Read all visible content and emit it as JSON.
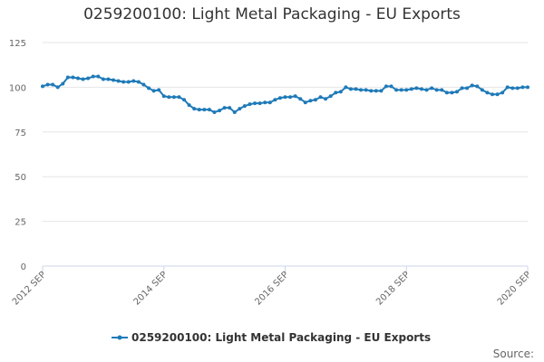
{
  "chart_data": {
    "type": "line",
    "title": "0259200100: Light Metal Packaging - EU Exports",
    "xlabel": "",
    "ylabel": "",
    "ylim": [
      0,
      125
    ],
    "yticks": [
      0,
      25,
      50,
      75,
      100,
      125
    ],
    "xtick_labels": [
      "2012 SEP",
      "2014 SEP",
      "2016 SEP",
      "2018 SEP",
      "2020 SEP"
    ],
    "xtick_months": [
      0,
      24,
      48,
      72,
      96
    ],
    "grid": true,
    "legend_position": "bottom-center",
    "series": [
      {
        "name": "0259200100: Light Metal Packaging - EU Exports",
        "color": "#1f7ab8",
        "values": [
          100.5,
          101.5,
          101.5,
          100,
          102,
          105.5,
          105.5,
          105,
          104.5,
          105,
          106,
          106,
          104.5,
          104.5,
          104,
          103.5,
          103,
          103,
          103.5,
          103,
          101.5,
          99.5,
          98,
          98.5,
          95,
          94.5,
          94.5,
          94.5,
          93,
          90,
          88,
          87.5,
          87.5,
          87.5,
          86,
          87,
          88.5,
          88.5,
          86,
          88,
          89.5,
          90.5,
          91,
          91,
          91.5,
          91.5,
          93,
          94,
          94.5,
          94.5,
          95,
          93.5,
          91.5,
          92.5,
          93,
          94.5,
          93.5,
          95,
          97,
          97.5,
          100,
          99,
          99,
          98.5,
          98.5,
          98,
          98,
          98,
          100.5,
          100.5,
          98.5,
          98.5,
          98.5,
          99,
          99.5,
          99,
          98.5,
          99.5,
          98.5,
          98.5,
          97,
          97,
          97.5,
          99.5,
          99.5,
          101,
          100.5,
          98.5,
          97,
          96,
          96,
          97,
          100,
          99.5,
          99.5,
          100,
          100
        ]
      }
    ]
  },
  "legend": {
    "label": "0259200100: Light Metal Packaging - EU Exports"
  },
  "footer": {
    "source": "Source:"
  }
}
